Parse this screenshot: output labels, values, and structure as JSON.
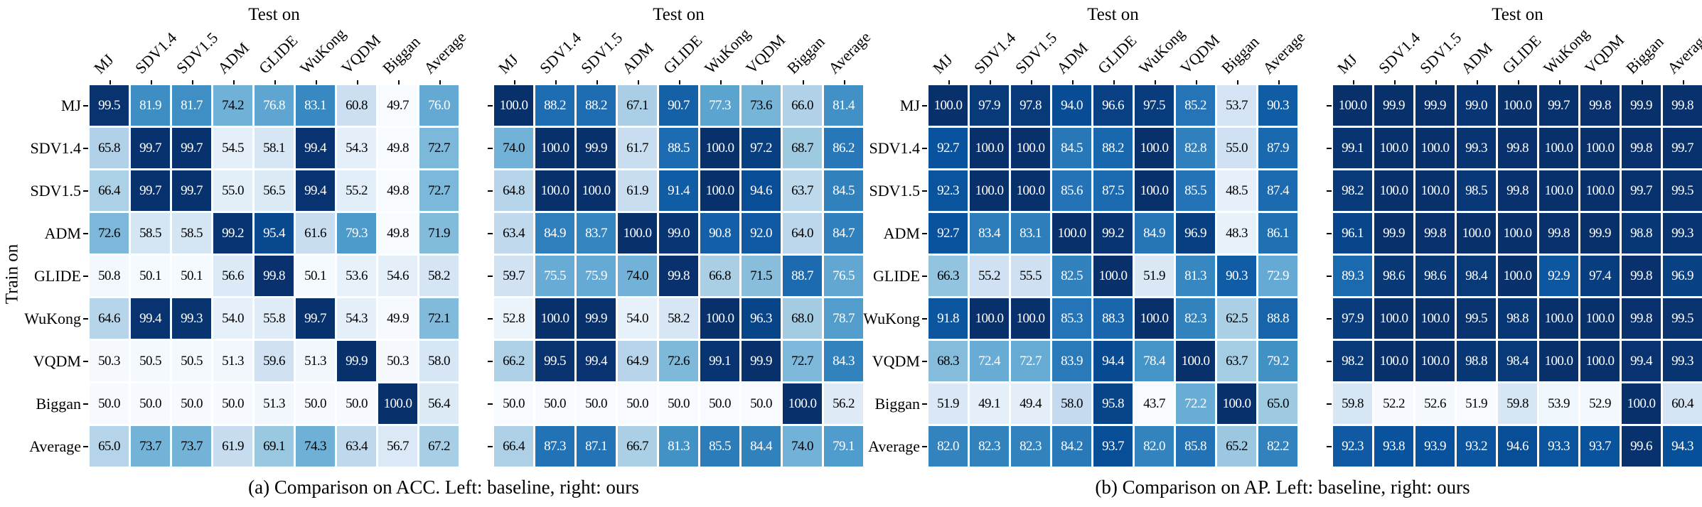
{
  "figure": {
    "x_axis_title": "Test on",
    "y_axis_title": "Train on",
    "row_labels": [
      "MJ",
      "SDV1.4",
      "SDV1.5",
      "ADM",
      "GLIDE",
      "WuKong",
      "VQDM",
      "Biggan",
      "Average"
    ],
    "col_labels": [
      "MJ",
      "SDV1.4",
      "SDV1.5",
      "ADM",
      "GLIDE",
      "WuKong",
      "VQDM",
      "Biggan",
      "Average"
    ],
    "captions": {
      "a": "(a) Comparison on ACC. Left: baseline, right: ours",
      "b": "(b) Comparison on AP. Left: baseline, right: ours"
    }
  },
  "colors": {
    "cmap_name": "Blues",
    "cmap_low": "#f7fbff",
    "cmap_high": "#08306b",
    "text_on_dark": "#ffffff",
    "text_on_light": "#000000"
  },
  "chart_data": [
    {
      "type": "heatmap",
      "name": "ACC baseline",
      "metric": "ACC",
      "variant": "baseline",
      "x_title": "Test on",
      "y_title": "Train on",
      "rows": [
        "MJ",
        "SDV1.4",
        "SDV1.5",
        "ADM",
        "GLIDE",
        "WuKong",
        "VQDM",
        "Biggan",
        "Average"
      ],
      "cols": [
        "MJ",
        "SDV1.4",
        "SDV1.5",
        "ADM",
        "GLIDE",
        "WuKong",
        "VQDM",
        "Biggan",
        "Average"
      ],
      "vmax": 100,
      "value_format": ".1f",
      "values": [
        [
          99.5,
          81.9,
          81.7,
          74.2,
          76.8,
          83.1,
          60.8,
          49.7,
          76.0
        ],
        [
          65.8,
          99.7,
          99.7,
          54.5,
          58.1,
          99.4,
          54.3,
          49.8,
          72.7
        ],
        [
          66.4,
          99.7,
          99.7,
          55.0,
          56.5,
          99.4,
          55.2,
          49.8,
          72.7
        ],
        [
          72.6,
          58.5,
          58.5,
          99.2,
          95.4,
          61.6,
          79.3,
          49.8,
          71.9
        ],
        [
          50.8,
          50.1,
          50.1,
          56.6,
          99.8,
          50.1,
          53.6,
          54.6,
          58.2
        ],
        [
          64.6,
          99.4,
          99.3,
          54.0,
          55.8,
          99.7,
          54.3,
          49.9,
          72.1
        ],
        [
          50.3,
          50.5,
          50.5,
          51.3,
          59.6,
          51.3,
          99.9,
          50.3,
          58.0
        ],
        [
          50.0,
          50.0,
          50.0,
          50.0,
          51.3,
          50.0,
          50.0,
          100.0,
          56.4
        ],
        [
          65.0,
          73.7,
          73.7,
          61.9,
          69.1,
          74.3,
          63.4,
          56.7,
          67.2
        ]
      ]
    },
    {
      "type": "heatmap",
      "name": "ACC ours",
      "metric": "ACC",
      "variant": "ours",
      "x_title": "Test on",
      "y_title": "Train on",
      "rows": [
        "MJ",
        "SDV1.4",
        "SDV1.5",
        "ADM",
        "GLIDE",
        "WuKong",
        "VQDM",
        "Biggan",
        "Average"
      ],
      "cols": [
        "MJ",
        "SDV1.4",
        "SDV1.5",
        "ADM",
        "GLIDE",
        "WuKong",
        "VQDM",
        "Biggan",
        "Average"
      ],
      "vmax": 100,
      "value_format": ".1f",
      "values": [
        [
          100.0,
          88.2,
          88.2,
          67.1,
          90.7,
          77.3,
          73.6,
          66.0,
          81.4
        ],
        [
          74.0,
          100.0,
          99.9,
          61.7,
          88.5,
          100.0,
          97.2,
          68.7,
          86.2
        ],
        [
          64.8,
          100.0,
          100.0,
          61.9,
          91.4,
          100.0,
          94.6,
          63.7,
          84.5
        ],
        [
          63.4,
          84.9,
          83.7,
          100.0,
          99.0,
          90.8,
          92.0,
          64.0,
          84.7
        ],
        [
          59.7,
          75.5,
          75.9,
          74.0,
          99.8,
          66.8,
          71.5,
          88.7,
          76.5
        ],
        [
          52.8,
          100.0,
          99.9,
          54.0,
          58.2,
          100.0,
          96.3,
          68.0,
          78.7
        ],
        [
          66.2,
          99.5,
          99.4,
          64.9,
          72.6,
          99.1,
          99.9,
          72.7,
          84.3
        ],
        [
          50.0,
          50.0,
          50.0,
          50.0,
          50.0,
          50.0,
          50.0,
          100.0,
          56.2
        ],
        [
          66.4,
          87.3,
          87.1,
          66.7,
          81.3,
          85.5,
          84.4,
          74.0,
          79.1
        ]
      ]
    },
    {
      "type": "heatmap",
      "name": "AP baseline",
      "metric": "AP",
      "variant": "baseline",
      "x_title": "Test on",
      "y_title": "Train on",
      "rows": [
        "MJ",
        "SDV1.4",
        "SDV1.5",
        "ADM",
        "GLIDE",
        "WuKong",
        "VQDM",
        "Biggan",
        "Average"
      ],
      "cols": [
        "MJ",
        "SDV1.4",
        "SDV1.5",
        "ADM",
        "GLIDE",
        "WuKong",
        "VQDM",
        "Biggan",
        "Average"
      ],
      "vmax": 100,
      "value_format": ".1f",
      "values": [
        [
          100.0,
          97.9,
          97.8,
          94.0,
          96.6,
          97.5,
          85.2,
          53.7,
          90.3
        ],
        [
          92.7,
          100.0,
          100.0,
          84.5,
          88.2,
          100.0,
          82.8,
          55.0,
          87.9
        ],
        [
          92.3,
          100.0,
          100.0,
          85.6,
          87.5,
          100.0,
          85.5,
          48.5,
          87.4
        ],
        [
          92.7,
          83.4,
          83.1,
          100.0,
          99.2,
          84.9,
          96.9,
          48.3,
          86.1
        ],
        [
          66.3,
          55.2,
          55.5,
          82.5,
          100.0,
          51.9,
          81.3,
          90.3,
          72.9
        ],
        [
          91.8,
          100.0,
          100.0,
          85.3,
          88.3,
          100.0,
          82.3,
          62.5,
          88.8
        ],
        [
          68.3,
          72.4,
          72.7,
          83.9,
          94.4,
          78.4,
          100.0,
          63.7,
          79.2
        ],
        [
          51.9,
          49.1,
          49.4,
          58.0,
          95.8,
          43.7,
          72.2,
          100.0,
          65.0
        ],
        [
          82.0,
          82.3,
          82.3,
          84.2,
          93.7,
          82.0,
          85.8,
          65.2,
          82.2
        ]
      ]
    },
    {
      "type": "heatmap",
      "name": "AP ours",
      "metric": "AP",
      "variant": "ours",
      "x_title": "Test on",
      "y_title": "Train on",
      "rows": [
        "MJ",
        "SDV1.4",
        "SDV1.5",
        "ADM",
        "GLIDE",
        "WuKong",
        "VQDM",
        "Biggan",
        "Average"
      ],
      "cols": [
        "MJ",
        "SDV1.4",
        "SDV1.5",
        "ADM",
        "GLIDE",
        "WuKong",
        "VQDM",
        "Biggan",
        "Average"
      ],
      "vmax": 100,
      "value_format": ".1f",
      "values": [
        [
          100.0,
          99.9,
          99.9,
          99.0,
          100.0,
          99.7,
          99.8,
          99.9,
          99.8
        ],
        [
          99.1,
          100.0,
          100.0,
          99.3,
          99.8,
          100.0,
          100.0,
          99.8,
          99.7
        ],
        [
          98.2,
          100.0,
          100.0,
          98.5,
          99.8,
          100.0,
          100.0,
          99.7,
          99.5
        ],
        [
          96.1,
          99.9,
          99.8,
          100.0,
          100.0,
          99.8,
          99.9,
          98.8,
          99.3
        ],
        [
          89.3,
          98.6,
          98.6,
          98.4,
          100.0,
          92.9,
          97.4,
          99.8,
          96.9
        ],
        [
          97.9,
          100.0,
          100.0,
          99.5,
          98.8,
          100.0,
          100.0,
          99.8,
          99.5
        ],
        [
          98.2,
          100.0,
          100.0,
          98.8,
          98.4,
          100.0,
          100.0,
          99.4,
          99.3
        ],
        [
          59.8,
          52.2,
          52.6,
          51.9,
          59.8,
          53.9,
          52.9,
          100.0,
          60.4
        ],
        [
          92.3,
          93.8,
          93.9,
          93.2,
          94.6,
          93.3,
          93.7,
          99.6,
          94.3
        ]
      ]
    }
  ]
}
